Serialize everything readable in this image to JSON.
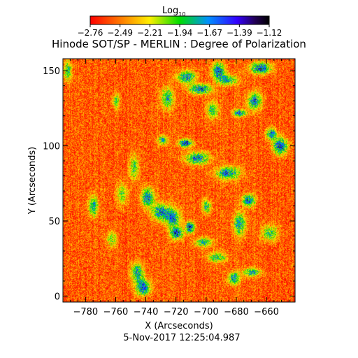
{
  "chart_data": {
    "type": "heatmap",
    "title": "Hinode SOT/SP - MERLIN : Degree of Polarization",
    "xlabel": "X (Arcseconds)",
    "ylabel": "Y (Arcseconds)",
    "footer": "5-Nov-2017 12:25:04.987",
    "colorbar": {
      "label_main": "Log",
      "label_sub": "10",
      "min": -2.76,
      "max": -1.12,
      "tick_labels": [
        "−2.76",
        "−2.49",
        "−2.21",
        "−1.94",
        "−1.67",
        "−1.39",
        "−1.12"
      ]
    },
    "xlim": [
      -795,
      -641
    ],
    "ylim": [
      -4,
      158
    ],
    "x_ticks": [
      -780,
      -760,
      -740,
      -720,
      -700,
      -680,
      -660
    ],
    "x_tick_labels": [
      "−780",
      "−760",
      "−740",
      "−720",
      "−700",
      "−680",
      "−660"
    ],
    "y_ticks": [
      0,
      50,
      100,
      150
    ],
    "y_tick_labels": [
      "0",
      "50",
      "100",
      "150"
    ],
    "background_level": -2.55,
    "features": [
      {
        "x": -692,
        "y": 150,
        "level": -1.5
      },
      {
        "x": -704,
        "y": 138,
        "level": -1.45
      },
      {
        "x": -713,
        "y": 146,
        "level": -1.6
      },
      {
        "x": -678,
        "y": 122,
        "level": -1.55
      },
      {
        "x": -664,
        "y": 152,
        "level": -1.4
      },
      {
        "x": -668,
        "y": 130,
        "level": -1.6
      },
      {
        "x": -726,
        "y": 132,
        "level": -1.75
      },
      {
        "x": -696,
        "y": 124,
        "level": -1.8
      },
      {
        "x": -714,
        "y": 102,
        "level": -1.35
      },
      {
        "x": -706,
        "y": 92,
        "level": -1.6
      },
      {
        "x": -729,
        "y": 104,
        "level": -1.7
      },
      {
        "x": -651,
        "y": 100,
        "level": -1.4
      },
      {
        "x": -657,
        "y": 108,
        "level": -1.6
      },
      {
        "x": -686,
        "y": 82,
        "level": -1.6
      },
      {
        "x": -672,
        "y": 64,
        "level": -1.45
      },
      {
        "x": -678,
        "y": 48,
        "level": -1.65
      },
      {
        "x": -711,
        "y": 46,
        "level": -1.3
      },
      {
        "x": -720,
        "y": 42,
        "level": -1.4
      },
      {
        "x": -730,
        "y": 56,
        "level": -1.6
      },
      {
        "x": -739,
        "y": 66,
        "level": -1.55
      },
      {
        "x": -702,
        "y": 36,
        "level": -1.7
      },
      {
        "x": -722,
        "y": 52,
        "level": -1.65
      },
      {
        "x": -693,
        "y": 26,
        "level": -1.8
      },
      {
        "x": -756,
        "y": 68,
        "level": -1.95
      },
      {
        "x": -775,
        "y": 60,
        "level": -1.7
      },
      {
        "x": -742,
        "y": 6,
        "level": -1.45
      },
      {
        "x": -746,
        "y": 16,
        "level": -1.65
      },
      {
        "x": -682,
        "y": 12,
        "level": -1.6
      },
      {
        "x": -670,
        "y": 16,
        "level": -1.7
      },
      {
        "x": -792,
        "y": 150,
        "level": -1.8
      },
      {
        "x": -760,
        "y": 130,
        "level": -1.9
      },
      {
        "x": -748,
        "y": 86,
        "level": -1.9
      },
      {
        "x": -700,
        "y": 60,
        "level": -1.75
      },
      {
        "x": -763,
        "y": 38,
        "level": -1.95
      },
      {
        "x": -658,
        "y": 42,
        "level": -1.85
      },
      {
        "x": -686,
        "y": 144,
        "level": -1.7
      }
    ]
  }
}
